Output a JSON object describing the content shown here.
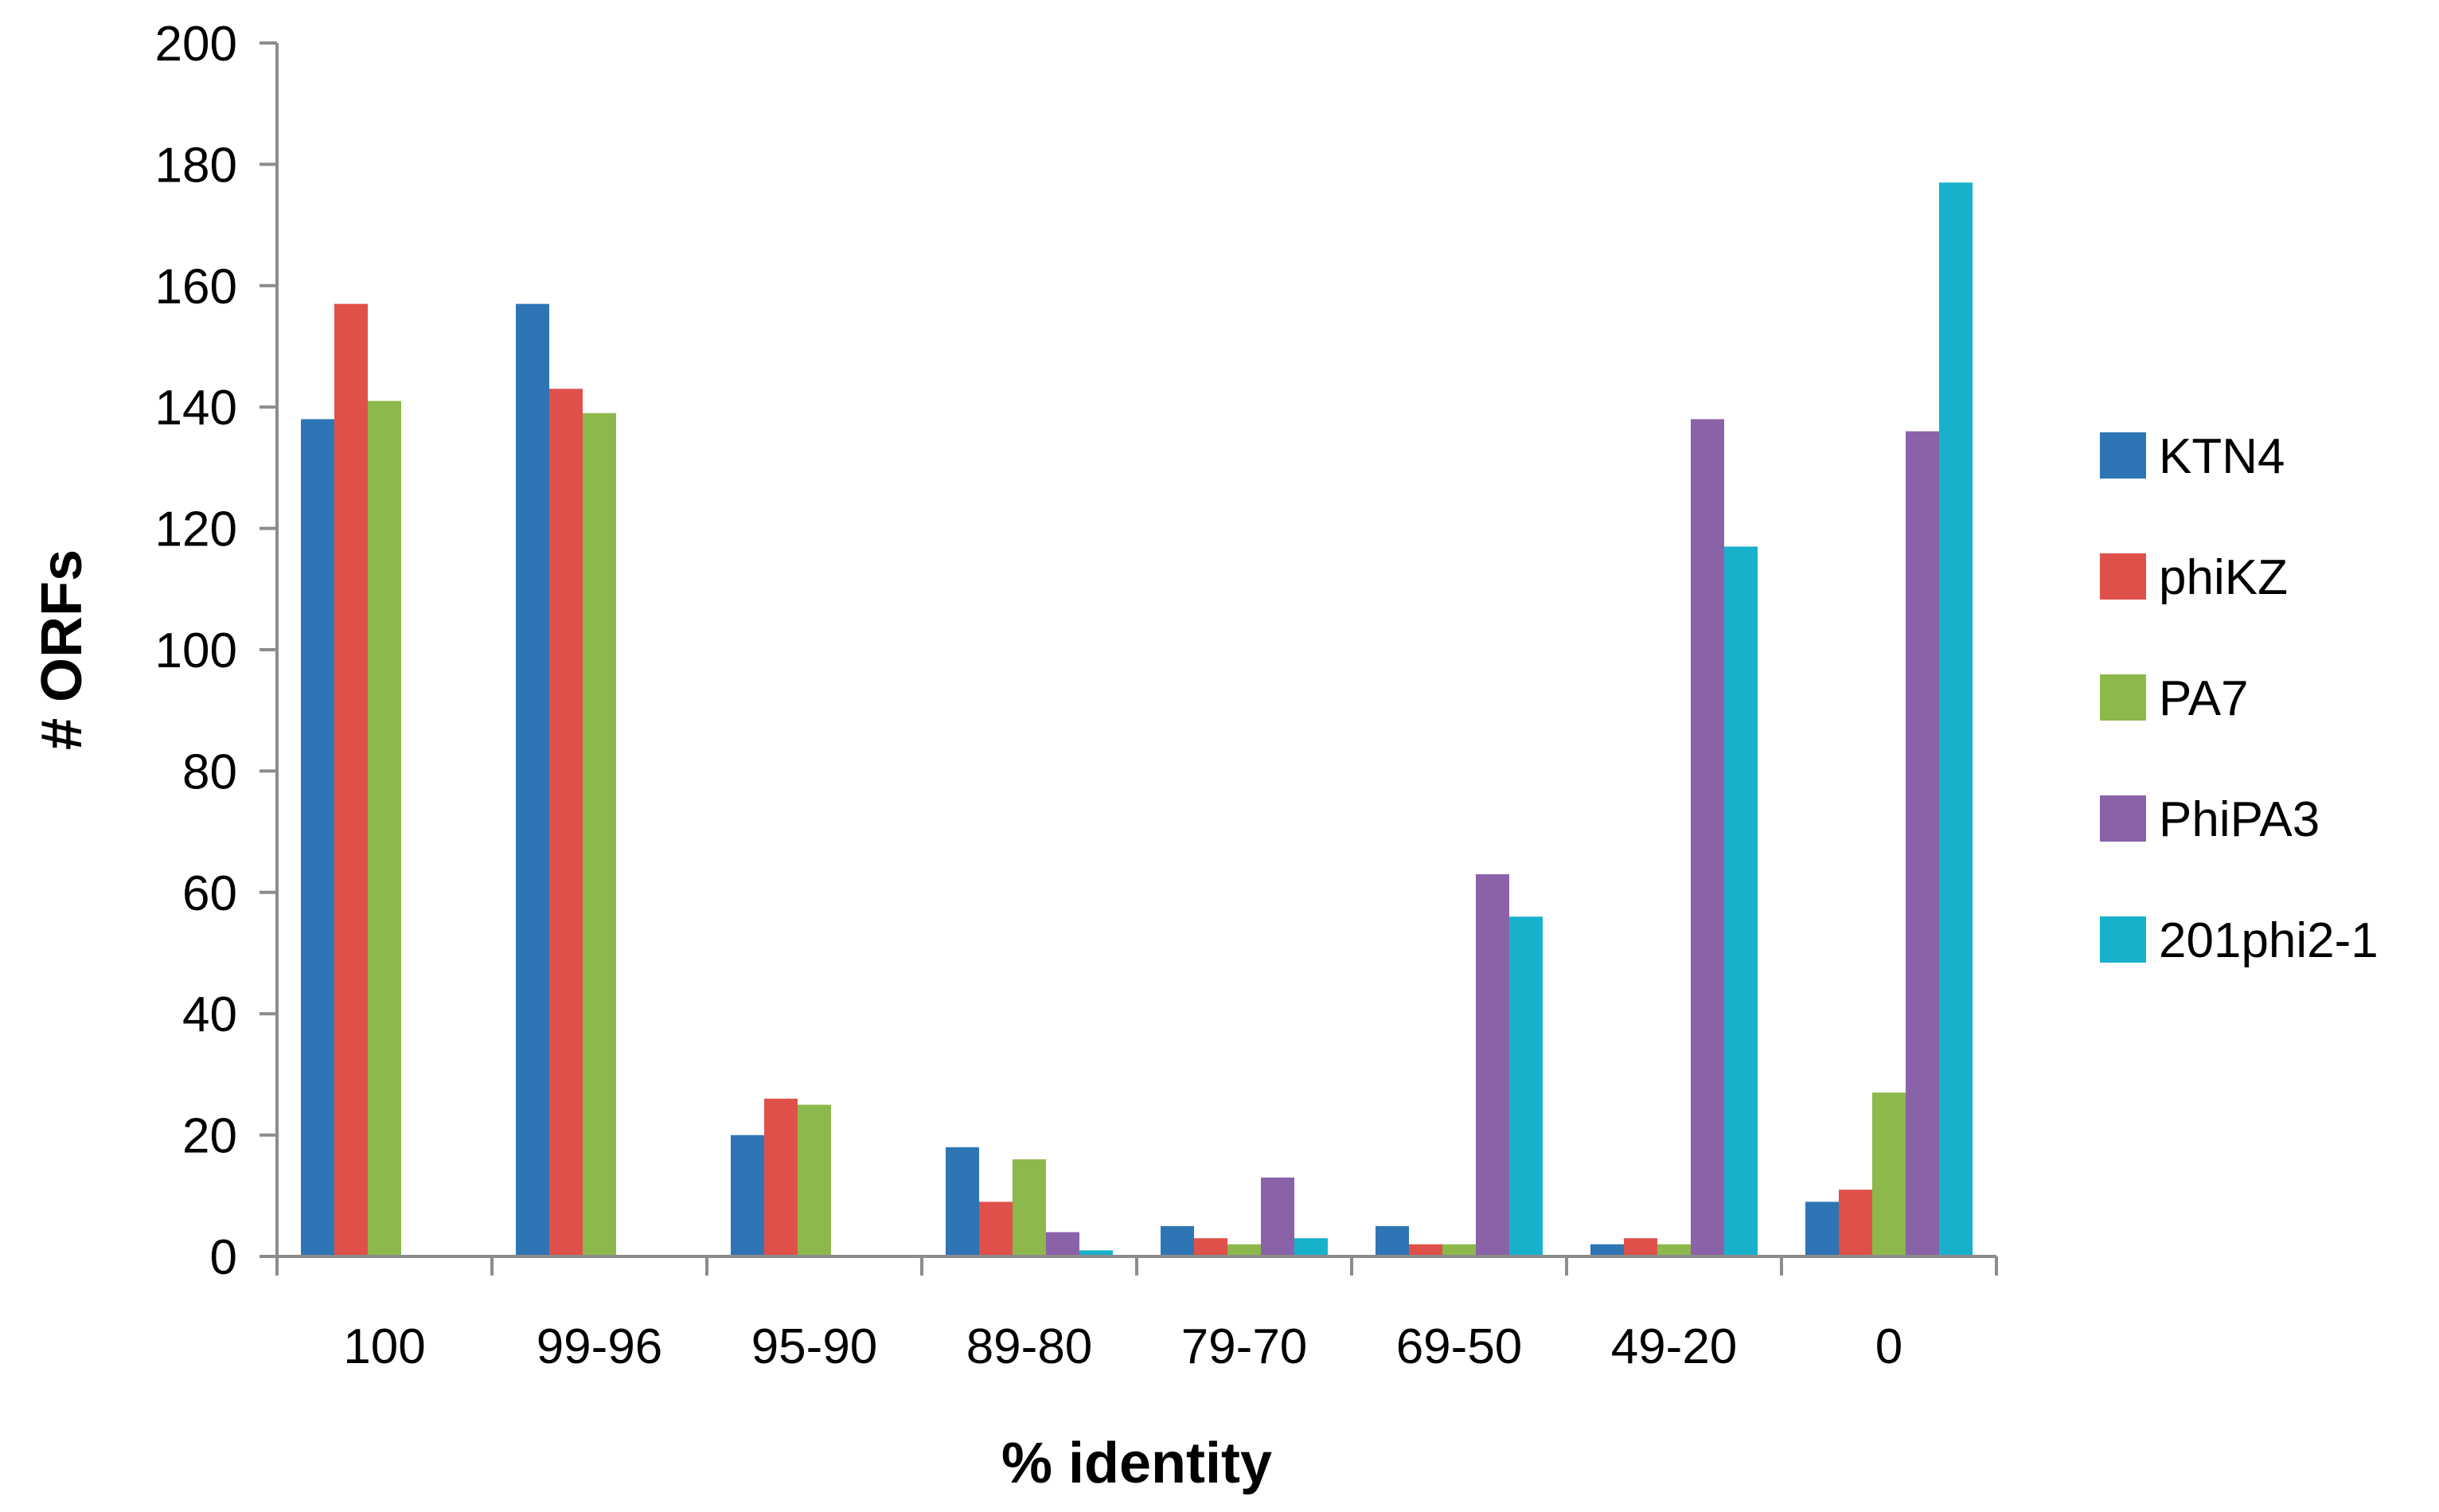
{
  "chart_data": {
    "type": "bar",
    "title": "",
    "xlabel": "% identity",
    "ylabel": "# ORFs",
    "ylim": [
      0,
      200
    ],
    "yticks": [
      0,
      20,
      40,
      60,
      80,
      100,
      120,
      140,
      160,
      180,
      200
    ],
    "grid": false,
    "legend_position": "right",
    "categories": [
      "100",
      "99-96",
      "95-90",
      "89-80",
      "79-70",
      "69-50",
      "49-20",
      "0"
    ],
    "series": [
      {
        "name": "KTN4",
        "color": "#2E75B6",
        "values": [
          138,
          157,
          20,
          18,
          5,
          5,
          2,
          9
        ]
      },
      {
        "name": "phiKZ",
        "color": "#E0504A",
        "values": [
          157,
          143,
          26,
          9,
          3,
          2,
          3,
          11
        ]
      },
      {
        "name": "PA7",
        "color": "#8DB84B",
        "values": [
          141,
          139,
          25,
          16,
          2,
          2,
          2,
          27
        ]
      },
      {
        "name": "PhiPA3",
        "color": "#8A62A8",
        "values": [
          0,
          0,
          0,
          4,
          13,
          63,
          138,
          136
        ]
      },
      {
        "name": "201phi2-1",
        "color": "#17B1CC",
        "values": [
          0,
          0,
          0,
          1,
          3,
          56,
          117,
          177
        ]
      }
    ]
  }
}
